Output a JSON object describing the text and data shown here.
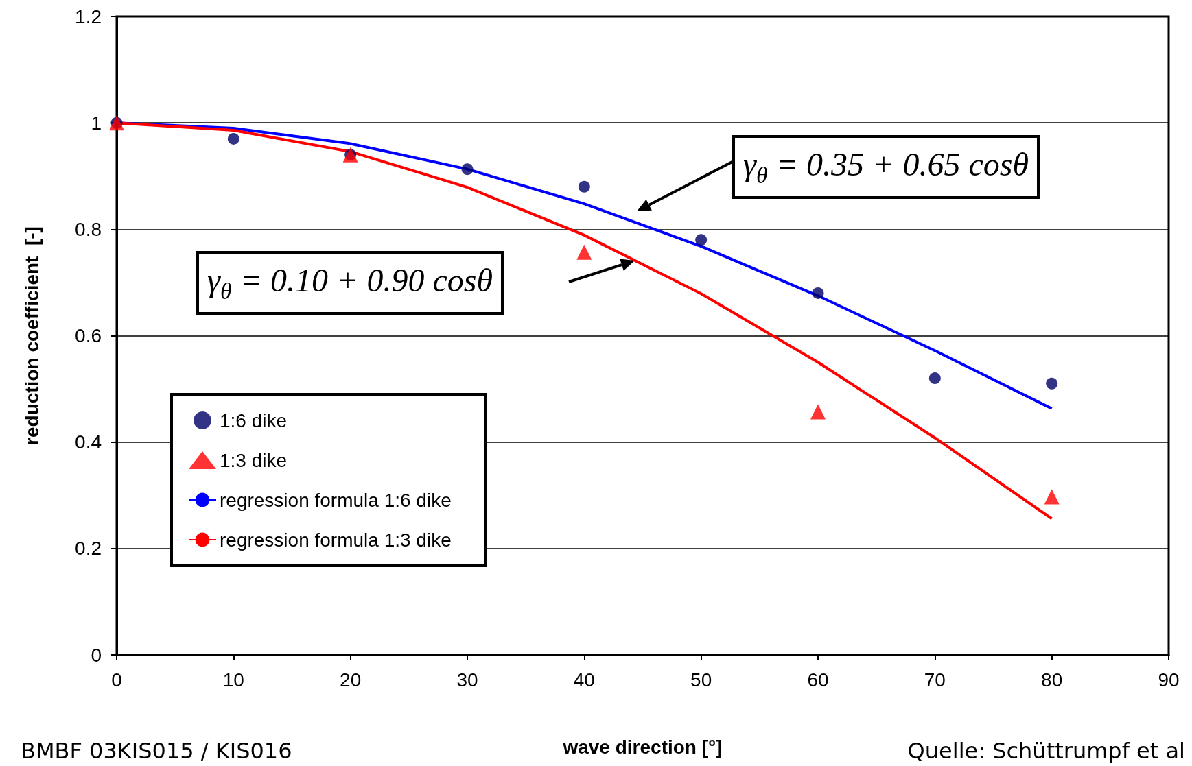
{
  "chart_data": {
    "type": "scatter",
    "xlabel": "wave direction [°]",
    "ylabel": "reduction coefficient  [-]",
    "xlim": [
      0,
      90
    ],
    "xticks": [
      0,
      10,
      20,
      30,
      40,
      50,
      60,
      70,
      80,
      90
    ],
    "ylim": [
      0,
      1.2
    ],
    "yticks": [
      0,
      0.2,
      0.4,
      0.6,
      0.8,
      1,
      1.2
    ],
    "grid": "y",
    "legend": "bottom left",
    "series": [
      {
        "name": "1:6 dike",
        "marker": "circle",
        "color": "#000066",
        "x": [
          0,
          10,
          20,
          30,
          40,
          50,
          60,
          70,
          80
        ],
        "values": [
          1.0,
          0.97,
          0.94,
          0.913,
          0.88,
          0.78,
          0.68,
          0.52,
          0.51
        ]
      },
      {
        "name": "1:3 dike",
        "marker": "triangle",
        "color": "#ff0000",
        "x": [
          0,
          20,
          40,
          60,
          80
        ],
        "values": [
          1.0,
          0.94,
          0.757,
          0.457,
          0.297
        ]
      },
      {
        "name": "regression formula 1:6 dike",
        "type": "line",
        "marker": "none",
        "line_style": "solid",
        "color": "#0000ff",
        "x": [
          0,
          10,
          20,
          30,
          40,
          50,
          60,
          70,
          80
        ],
        "values": [
          1.0,
          0.99,
          0.961,
          0.913,
          0.848,
          0.768,
          0.675,
          0.572,
          0.463
        ]
      },
      {
        "name": "regression formula 1:3 dike",
        "type": "line",
        "marker": "none",
        "line_style": "solid",
        "color": "#ff0000",
        "x": [
          0,
          10,
          20,
          30,
          40,
          50,
          60,
          70,
          80
        ],
        "values": [
          1.0,
          0.986,
          0.946,
          0.879,
          0.789,
          0.679,
          0.55,
          0.408,
          0.256
        ]
      }
    ],
    "annotations": [
      "γ$_{θ}$ = 0.35 + 0.65 cosθ",
      "γ$_{θ}$ = 0.10 + 0.90 cosθ",
      "BMBF 03KIS015 / KIS016",
      "Quelle: Schüttrumpf et al"
    ]
  }
}
